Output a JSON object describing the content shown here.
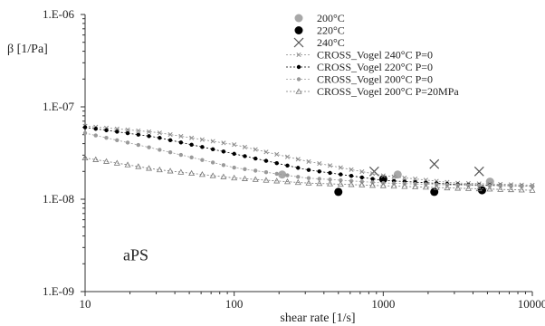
{
  "chart_data": {
    "type": "scatter",
    "x_scale": "log",
    "y_scale": "log",
    "xlim": [
      10,
      10000
    ],
    "ylim": [
      1e-09,
      1e-06
    ],
    "xlabel": "shear rate [1/s]",
    "ylabel": "β [1/Pa]",
    "x_tick_labels": [
      {
        "value": 10,
        "label": "10"
      },
      {
        "value": 100,
        "label": "100"
      },
      {
        "value": 1000,
        "label": "1000"
      },
      {
        "value": 10000,
        "label": "10000"
      }
    ],
    "y_tick_labels": [
      {
        "value": 1e-06,
        "label": "1.E-06"
      },
      {
        "value": 1e-07,
        "label": "1.E-07"
      },
      {
        "value": 1e-08,
        "label": "1.E-08"
      },
      {
        "value": 1e-09,
        "label": "1.E-09"
      }
    ],
    "grid": false,
    "legend_position": "top-right",
    "annotations": [
      {
        "text": "aPS",
        "x": 18,
        "y": 2.5e-09
      }
    ],
    "series": [
      {
        "name": "200°C",
        "kind": "points",
        "marker": "circle",
        "color": "#a8a8a8",
        "x": [
          210,
          1250,
          5200
        ],
        "y": [
          1.85e-08,
          1.85e-08,
          1.55e-08
        ]
      },
      {
        "name": "220°C",
        "kind": "points",
        "marker": "circle",
        "color": "#000000",
        "x": [
          500,
          1000,
          2200,
          4600
        ],
        "y": [
          1.2e-08,
          1.65e-08,
          1.2e-08,
          1.25e-08
        ]
      },
      {
        "name": "240°C",
        "kind": "points",
        "marker": "x",
        "color": "#555555",
        "x": [
          870,
          2200,
          4400
        ],
        "y": [
          2e-08,
          2.4e-08,
          2e-08
        ]
      },
      {
        "name": "CROSS_Vogel 240°C P=0",
        "kind": "line",
        "marker": "x-small",
        "color": "#8a8a8a",
        "x": [
          10,
          30,
          100,
          300,
          1000,
          3000,
          10000
        ],
        "y": [
          6.2e-08,
          5.3e-08,
          3.9e-08,
          2.6e-08,
          1.8e-08,
          1.5e-08,
          1.42e-08
        ]
      },
      {
        "name": "CROSS_Vogel 220°C P=0",
        "kind": "line",
        "marker": "dot",
        "color": "#000000",
        "x": [
          10,
          30,
          100,
          300,
          1000,
          3000,
          10000
        ],
        "y": [
          6e-08,
          4.7e-08,
          3.1e-08,
          2.1e-08,
          1.6e-08,
          1.45e-08,
          1.38e-08
        ]
      },
      {
        "name": "CROSS_Vogel 200°C P=0",
        "kind": "line",
        "marker": "dot",
        "color": "#9a9a9a",
        "x": [
          10,
          30,
          100,
          300,
          1000,
          3000,
          10000
        ],
        "y": [
          5.2e-08,
          3.5e-08,
          2.2e-08,
          1.7e-08,
          1.5e-08,
          1.42e-08,
          1.38e-08
        ]
      },
      {
        "name": "CROSS_Vogel 200°C P=20MPa",
        "kind": "line",
        "marker": "triangle",
        "color": "#777777",
        "x": [
          10,
          30,
          100,
          300,
          1000,
          3000,
          10000
        ],
        "y": [
          2.8e-08,
          2.1e-08,
          1.7e-08,
          1.5e-08,
          1.4e-08,
          1.32e-08,
          1.25e-08
        ]
      }
    ]
  }
}
